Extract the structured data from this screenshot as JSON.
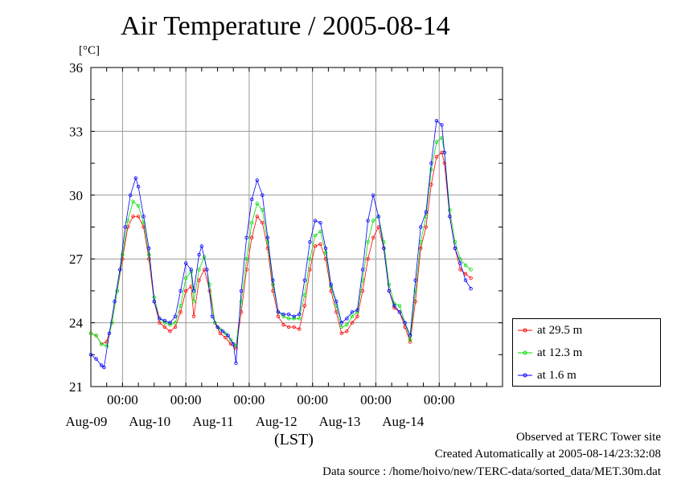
{
  "chart_data": {
    "type": "line",
    "title": "Air Temperature / 2005-08-14",
    "ylabel": "[°C]",
    "xlabel": "(LST)",
    "ylim": [
      21,
      36
    ],
    "yticks": [
      21,
      24,
      27,
      30,
      33,
      36
    ],
    "xlim": [
      "2005-08-08 12:00",
      "2005-08-14 24:00"
    ],
    "time_tick_label": "00:00",
    "date_labels": [
      "Aug-09",
      "Aug-10",
      "Aug-11",
      "Aug-12",
      "Aug-13",
      "Aug-14"
    ],
    "grid": true,
    "legend_position": "bottom-right outside plot",
    "series": [
      {
        "name": "at 29.5 m",
        "color": "#ff0000",
        "points": [
          [
            "2005-08-08 12:00",
            23.5
          ],
          [
            "2005-08-08 14:00",
            23.4
          ],
          [
            "2005-08-08 16:00",
            23.0
          ],
          [
            "2005-08-08 18:00",
            23.1
          ],
          [
            "2005-08-08 20:00",
            24.0
          ],
          [
            "2005-08-08 22:00",
            25.5
          ],
          [
            "2005-08-09 00:00",
            27.0
          ],
          [
            "2005-08-09 02:00",
            28.5
          ],
          [
            "2005-08-09 04:00",
            29.0
          ],
          [
            "2005-08-09 06:00",
            29.0
          ],
          [
            "2005-08-09 08:00",
            28.5
          ],
          [
            "2005-08-09 10:00",
            27.0
          ],
          [
            "2005-08-09 12:00",
            25.0
          ],
          [
            "2005-08-09 14:00",
            24.0
          ],
          [
            "2005-08-09 16:00",
            23.8
          ],
          [
            "2005-08-09 18:00",
            23.6
          ],
          [
            "2005-08-09 20:00",
            23.8
          ],
          [
            "2005-08-09 22:00",
            24.5
          ],
          [
            "2005-08-10 00:00",
            25.5
          ],
          [
            "2005-08-10 02:00",
            25.7
          ],
          [
            "2005-08-10 03:00",
            24.3
          ],
          [
            "2005-08-10 05:00",
            26.0
          ],
          [
            "2005-08-10 07:00",
            26.5
          ],
          [
            "2005-08-10 09:00",
            25.5
          ],
          [
            "2005-08-10 11:00",
            24.0
          ],
          [
            "2005-08-10 13:00",
            23.5
          ],
          [
            "2005-08-10 15:00",
            23.3
          ],
          [
            "2005-08-10 17:00",
            23.0
          ],
          [
            "2005-08-10 19:00",
            22.8
          ],
          [
            "2005-08-10 21:00",
            24.5
          ],
          [
            "2005-08-10 23:00",
            26.5
          ],
          [
            "2005-08-11 01:00",
            28.0
          ],
          [
            "2005-08-11 03:00",
            29.0
          ],
          [
            "2005-08-11 05:00",
            28.7
          ],
          [
            "2005-08-11 07:00",
            27.5
          ],
          [
            "2005-08-11 09:00",
            25.5
          ],
          [
            "2005-08-11 11:00",
            24.3
          ],
          [
            "2005-08-11 13:00",
            23.9
          ],
          [
            "2005-08-11 15:00",
            23.8
          ],
          [
            "2005-08-11 17:00",
            23.8
          ],
          [
            "2005-08-11 19:00",
            23.7
          ],
          [
            "2005-08-11 21:00",
            24.8
          ],
          [
            "2005-08-11 23:00",
            26.5
          ],
          [
            "2005-08-12 01:00",
            27.6
          ],
          [
            "2005-08-12 03:00",
            27.7
          ],
          [
            "2005-08-12 05:00",
            27.0
          ],
          [
            "2005-08-12 07:00",
            25.5
          ],
          [
            "2005-08-12 09:00",
            24.5
          ],
          [
            "2005-08-12 11:00",
            23.5
          ],
          [
            "2005-08-12 13:00",
            23.6
          ],
          [
            "2005-08-12 15:00",
            24.0
          ],
          [
            "2005-08-12 17:00",
            24.3
          ],
          [
            "2005-08-12 19:00",
            25.5
          ],
          [
            "2005-08-12 21:00",
            27.0
          ],
          [
            "2005-08-12 23:00",
            28.0
          ],
          [
            "2005-08-13 01:00",
            28.5
          ],
          [
            "2005-08-13 03:00",
            27.5
          ],
          [
            "2005-08-13 05:00",
            25.5
          ],
          [
            "2005-08-13 07:00",
            24.7
          ],
          [
            "2005-08-13 09:00",
            24.5
          ],
          [
            "2005-08-13 11:00",
            23.8
          ],
          [
            "2005-08-13 13:00",
            23.1
          ],
          [
            "2005-08-13 15:00",
            25.0
          ],
          [
            "2005-08-13 17:00",
            27.5
          ],
          [
            "2005-08-13 19:00",
            28.5
          ],
          [
            "2005-08-13 21:00",
            30.5
          ],
          [
            "2005-08-13 23:00",
            31.8
          ],
          [
            "2005-08-14 01:00",
            32.0
          ],
          [
            "2005-08-14 02:00",
            31.5
          ],
          [
            "2005-08-14 04:00",
            29.0
          ],
          [
            "2005-08-14 06:00",
            27.5
          ],
          [
            "2005-08-14 08:00",
            26.5
          ],
          [
            "2005-08-14 10:00",
            26.3
          ],
          [
            "2005-08-14 12:00",
            26.1
          ]
        ]
      },
      {
        "name": "at 12.3 m",
        "color": "#00dd00",
        "points": [
          [
            "2005-08-08 12:00",
            23.5
          ],
          [
            "2005-08-08 14:00",
            23.4
          ],
          [
            "2005-08-08 16:00",
            23.0
          ],
          [
            "2005-08-08 18:00",
            22.9
          ],
          [
            "2005-08-08 20:00",
            24.0
          ],
          [
            "2005-08-08 22:00",
            25.5
          ],
          [
            "2005-08-09 00:00",
            27.2
          ],
          [
            "2005-08-09 02:00",
            28.8
          ],
          [
            "2005-08-09 04:00",
            29.7
          ],
          [
            "2005-08-09 06:00",
            29.5
          ],
          [
            "2005-08-09 08:00",
            28.7
          ],
          [
            "2005-08-09 10:00",
            27.2
          ],
          [
            "2005-08-09 12:00",
            25.2
          ],
          [
            "2005-08-09 14:00",
            24.2
          ],
          [
            "2005-08-09 16:00",
            24.0
          ],
          [
            "2005-08-09 18:00",
            23.9
          ],
          [
            "2005-08-09 20:00",
            24.0
          ],
          [
            "2005-08-09 22:00",
            24.8
          ],
          [
            "2005-08-10 00:00",
            26.1
          ],
          [
            "2005-08-10 02:00",
            26.4
          ],
          [
            "2005-08-10 03:00",
            25.0
          ],
          [
            "2005-08-10 05:00",
            26.5
          ],
          [
            "2005-08-10 07:00",
            27.1
          ],
          [
            "2005-08-10 09:00",
            25.8
          ],
          [
            "2005-08-10 11:00",
            24.0
          ],
          [
            "2005-08-10 13:00",
            23.7
          ],
          [
            "2005-08-10 15:00",
            23.5
          ],
          [
            "2005-08-10 17:00",
            23.2
          ],
          [
            "2005-08-10 19:00",
            22.9
          ],
          [
            "2005-08-10 21:00",
            25.0
          ],
          [
            "2005-08-10 23:00",
            27.0
          ],
          [
            "2005-08-11 01:00",
            28.7
          ],
          [
            "2005-08-11 03:00",
            29.6
          ],
          [
            "2005-08-11 05:00",
            29.3
          ],
          [
            "2005-08-11 07:00",
            27.8
          ],
          [
            "2005-08-11 09:00",
            25.8
          ],
          [
            "2005-08-11 11:00",
            24.5
          ],
          [
            "2005-08-11 13:00",
            24.3
          ],
          [
            "2005-08-11 15:00",
            24.2
          ],
          [
            "2005-08-11 17:00",
            24.2
          ],
          [
            "2005-08-11 19:00",
            24.2
          ],
          [
            "2005-08-11 21:00",
            25.3
          ],
          [
            "2005-08-11 23:00",
            27.0
          ],
          [
            "2005-08-12 01:00",
            28.1
          ],
          [
            "2005-08-12 03:00",
            28.3
          ],
          [
            "2005-08-12 05:00",
            27.3
          ],
          [
            "2005-08-12 07:00",
            25.7
          ],
          [
            "2005-08-12 09:00",
            24.8
          ],
          [
            "2005-08-12 11:00",
            23.8
          ],
          [
            "2005-08-12 13:00",
            23.9
          ],
          [
            "2005-08-12 15:00",
            24.3
          ],
          [
            "2005-08-12 17:00",
            24.5
          ],
          [
            "2005-08-12 19:00",
            26.0
          ],
          [
            "2005-08-12 21:00",
            27.8
          ],
          [
            "2005-08-12 23:00",
            28.8
          ],
          [
            "2005-08-13 01:00",
            29.0
          ],
          [
            "2005-08-13 03:00",
            27.8
          ],
          [
            "2005-08-13 05:00",
            25.8
          ],
          [
            "2005-08-13 07:00",
            24.9
          ],
          [
            "2005-08-13 09:00",
            24.8
          ],
          [
            "2005-08-13 11:00",
            24.0
          ],
          [
            "2005-08-13 13:00",
            23.2
          ],
          [
            "2005-08-13 15:00",
            25.5
          ],
          [
            "2005-08-13 17:00",
            27.8
          ],
          [
            "2005-08-13 19:00",
            29.0
          ],
          [
            "2005-08-13 21:00",
            31.2
          ],
          [
            "2005-08-13 23:00",
            32.5
          ],
          [
            "2005-08-14 01:00",
            32.7
          ],
          [
            "2005-08-14 02:00",
            32.0
          ],
          [
            "2005-08-14 04:00",
            29.3
          ],
          [
            "2005-08-14 06:00",
            27.8
          ],
          [
            "2005-08-14 08:00",
            27.0
          ],
          [
            "2005-08-14 10:00",
            26.7
          ],
          [
            "2005-08-14 12:00",
            26.5
          ]
        ]
      },
      {
        "name": "at 1.6 m",
        "color": "#0000ff",
        "points": [
          [
            "2005-08-08 12:00",
            22.5
          ],
          [
            "2005-08-08 14:00",
            22.3
          ],
          [
            "2005-08-08 16:00",
            22.0
          ],
          [
            "2005-08-08 17:00",
            21.9
          ],
          [
            "2005-08-08 19:00",
            23.5
          ],
          [
            "2005-08-08 21:00",
            25.0
          ],
          [
            "2005-08-08 23:00",
            26.5
          ],
          [
            "2005-08-09 01:00",
            28.5
          ],
          [
            "2005-08-09 03:00",
            30.0
          ],
          [
            "2005-08-09 05:00",
            30.8
          ],
          [
            "2005-08-09 06:00",
            30.4
          ],
          [
            "2005-08-09 08:00",
            29.0
          ],
          [
            "2005-08-09 10:00",
            27.5
          ],
          [
            "2005-08-09 12:00",
            25.0
          ],
          [
            "2005-08-09 14:00",
            24.2
          ],
          [
            "2005-08-09 16:00",
            24.1
          ],
          [
            "2005-08-09 18:00",
            24.0
          ],
          [
            "2005-08-09 20:00",
            24.3
          ],
          [
            "2005-08-09 22:00",
            25.5
          ],
          [
            "2005-08-10 00:00",
            26.8
          ],
          [
            "2005-08-10 02:00",
            26.5
          ],
          [
            "2005-08-10 03:00",
            25.5
          ],
          [
            "2005-08-10 05:00",
            27.2
          ],
          [
            "2005-08-10 06:00",
            27.6
          ],
          [
            "2005-08-10 08:00",
            26.5
          ],
          [
            "2005-08-10 10:00",
            24.3
          ],
          [
            "2005-08-10 12:00",
            23.8
          ],
          [
            "2005-08-10 14:00",
            23.6
          ],
          [
            "2005-08-10 16:00",
            23.4
          ],
          [
            "2005-08-10 18:00",
            23.0
          ],
          [
            "2005-08-10 19:00",
            22.1
          ],
          [
            "2005-08-10 21:00",
            25.5
          ],
          [
            "2005-08-10 23:00",
            28.0
          ],
          [
            "2005-08-11 01:00",
            29.8
          ],
          [
            "2005-08-11 03:00",
            30.7
          ],
          [
            "2005-08-11 05:00",
            30.0
          ],
          [
            "2005-08-11 07:00",
            28.0
          ],
          [
            "2005-08-11 09:00",
            26.0
          ],
          [
            "2005-08-11 11:00",
            24.5
          ],
          [
            "2005-08-11 13:00",
            24.4
          ],
          [
            "2005-08-11 15:00",
            24.4
          ],
          [
            "2005-08-11 17:00",
            24.3
          ],
          [
            "2005-08-11 19:00",
            24.4
          ],
          [
            "2005-08-11 21:00",
            26.0
          ],
          [
            "2005-08-11 23:00",
            27.8
          ],
          [
            "2005-08-12 01:00",
            28.8
          ],
          [
            "2005-08-12 03:00",
            28.7
          ],
          [
            "2005-08-12 05:00",
            27.5
          ],
          [
            "2005-08-12 07:00",
            25.8
          ],
          [
            "2005-08-12 09:00",
            25.0
          ],
          [
            "2005-08-12 11:00",
            24.0
          ],
          [
            "2005-08-12 13:00",
            24.2
          ],
          [
            "2005-08-12 15:00",
            24.5
          ],
          [
            "2005-08-12 17:00",
            24.6
          ],
          [
            "2005-08-12 19:00",
            26.5
          ],
          [
            "2005-08-12 21:00",
            28.8
          ],
          [
            "2005-08-12 23:00",
            30.0
          ],
          [
            "2005-08-13 01:00",
            29.0
          ],
          [
            "2005-08-13 03:00",
            27.5
          ],
          [
            "2005-08-13 05:00",
            25.5
          ],
          [
            "2005-08-13 07:00",
            24.8
          ],
          [
            "2005-08-13 09:00",
            24.5
          ],
          [
            "2005-08-13 11:00",
            24.0
          ],
          [
            "2005-08-13 13:00",
            23.4
          ],
          [
            "2005-08-13 15:00",
            26.0
          ],
          [
            "2005-08-13 17:00",
            28.5
          ],
          [
            "2005-08-13 19:00",
            29.2
          ],
          [
            "2005-08-13 21:00",
            31.5
          ],
          [
            "2005-08-13 23:00",
            33.5
          ],
          [
            "2005-08-14 01:00",
            33.3
          ],
          [
            "2005-08-14 02:00",
            32.0
          ],
          [
            "2005-08-14 04:00",
            29.0
          ],
          [
            "2005-08-14 06:00",
            27.5
          ],
          [
            "2005-08-14 08:00",
            26.8
          ],
          [
            "2005-08-14 10:00",
            26.0
          ],
          [
            "2005-08-14 12:00",
            25.6
          ]
        ]
      }
    ]
  },
  "footer": {
    "site": "Observed at TERC Tower site",
    "created": "Created Automatically at 2005-08-14/23:32:08",
    "source": "Data source : /home/hoivo/new/TERC-data/sorted_data/MET.30m.dat"
  }
}
